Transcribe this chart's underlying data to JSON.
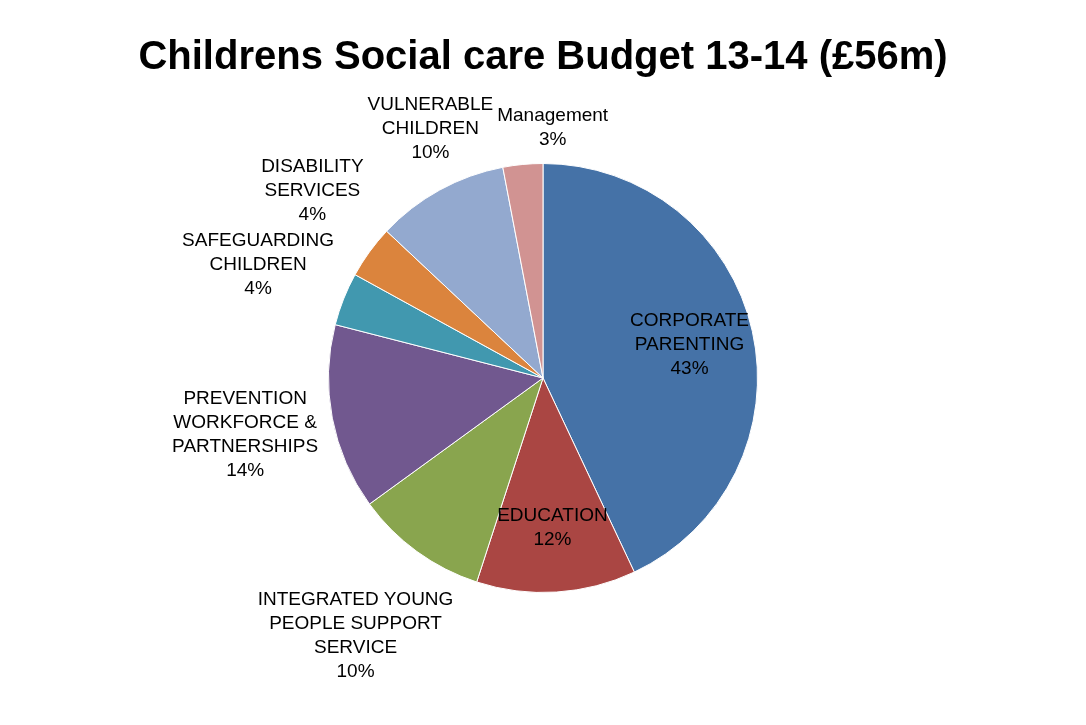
{
  "chart_data": {
    "type": "pie",
    "title": "Childrens Social care Budget 13-14 (£56m)",
    "categories": [
      "CORPORATE PARENTING",
      "EDUCATION",
      "INTEGRATED YOUNG PEOPLE SUPPORT SERVICE",
      "PREVENTION WORKFORCE & PARTNERSHIPS",
      "SAFEGUARDING CHILDREN",
      "DISABILITY SERVICES",
      "VULNERABLE CHILDREN",
      "Management"
    ],
    "values": [
      43,
      12,
      10,
      14,
      4,
      4,
      10,
      3
    ],
    "value_labels": [
      "43%",
      "12%",
      "10%",
      "14%",
      "4%",
      "4%",
      "10%",
      "3%"
    ],
    "colors": [
      "#4572a7",
      "#aa4643",
      "#89a54e",
      "#71588f",
      "#4198af",
      "#db843d",
      "#93a9cf",
      "#d19392"
    ],
    "legend": false
  }
}
